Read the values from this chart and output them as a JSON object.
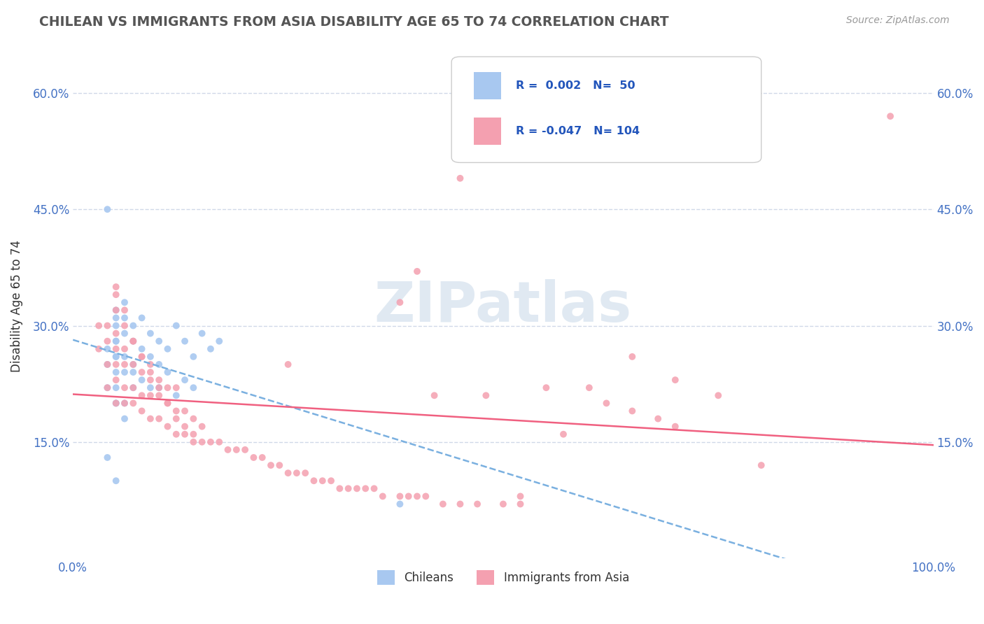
{
  "title": "CHILEAN VS IMMIGRANTS FROM ASIA DISABILITY AGE 65 TO 74 CORRELATION CHART",
  "source_text": "Source: ZipAtlas.com",
  "ylabel": "Disability Age 65 to 74",
  "xlim": [
    0.0,
    1.0
  ],
  "ylim": [
    0.0,
    0.65
  ],
  "xtick_labels": [
    "0.0%",
    "100.0%"
  ],
  "ytick_labels": [
    "15.0%",
    "30.0%",
    "45.0%",
    "60.0%"
  ],
  "ytick_values": [
    0.15,
    0.3,
    0.45,
    0.6
  ],
  "legend_r1": "R =  0.002",
  "legend_n1": "N=  50",
  "legend_r2": "R = -0.047",
  "legend_n2": "N= 104",
  "color_chilean": "#a8c8f0",
  "color_asia": "#f4a0b0",
  "trendline_chilean": "#7ab0e0",
  "trendline_asia": "#f06080",
  "background_color": "#ffffff",
  "grid_color": "#d0d8e8",
  "chilean_x": [
    0.04,
    0.04,
    0.04,
    0.05,
    0.05,
    0.05,
    0.05,
    0.05,
    0.05,
    0.05,
    0.05,
    0.06,
    0.06,
    0.06,
    0.06,
    0.06,
    0.07,
    0.07,
    0.07,
    0.08,
    0.08,
    0.09,
    0.09,
    0.1,
    0.1,
    0.11,
    0.12,
    0.13,
    0.14,
    0.15,
    0.16,
    0.17,
    0.05,
    0.06,
    0.07,
    0.08,
    0.09,
    0.1,
    0.11,
    0.12,
    0.13,
    0.14,
    0.05,
    0.06,
    0.07,
    0.38,
    0.04,
    0.05,
    0.05,
    0.04
  ],
  "chilean_y": [
    0.45,
    0.27,
    0.22,
    0.31,
    0.28,
    0.26,
    0.3,
    0.32,
    0.24,
    0.26,
    0.28,
    0.33,
    0.29,
    0.26,
    0.31,
    0.24,
    0.3,
    0.25,
    0.28,
    0.31,
    0.27,
    0.29,
    0.26,
    0.28,
    0.25,
    0.27,
    0.3,
    0.28,
    0.26,
    0.29,
    0.27,
    0.28,
    0.22,
    0.2,
    0.24,
    0.23,
    0.22,
    0.22,
    0.24,
    0.21,
    0.23,
    0.22,
    0.2,
    0.18,
    0.22,
    0.07,
    0.13,
    0.2,
    0.1,
    0.25
  ],
  "asia_x": [
    0.03,
    0.03,
    0.04,
    0.04,
    0.04,
    0.04,
    0.05,
    0.05,
    0.05,
    0.05,
    0.05,
    0.05,
    0.05,
    0.06,
    0.06,
    0.06,
    0.06,
    0.06,
    0.07,
    0.07,
    0.07,
    0.07,
    0.08,
    0.08,
    0.08,
    0.08,
    0.09,
    0.09,
    0.09,
    0.09,
    0.1,
    0.1,
    0.1,
    0.11,
    0.11,
    0.11,
    0.12,
    0.12,
    0.12,
    0.13,
    0.13,
    0.14,
    0.14,
    0.15,
    0.15,
    0.16,
    0.17,
    0.18,
    0.19,
    0.2,
    0.21,
    0.22,
    0.23,
    0.24,
    0.25,
    0.26,
    0.27,
    0.28,
    0.29,
    0.3,
    0.31,
    0.32,
    0.33,
    0.34,
    0.35,
    0.36,
    0.38,
    0.39,
    0.4,
    0.41,
    0.42,
    0.43,
    0.45,
    0.47,
    0.48,
    0.5,
    0.52,
    0.55,
    0.57,
    0.6,
    0.62,
    0.65,
    0.68,
    0.7,
    0.05,
    0.06,
    0.07,
    0.08,
    0.09,
    0.1,
    0.11,
    0.12,
    0.13,
    0.14,
    0.4,
    0.45,
    0.65,
    0.7,
    0.75,
    0.8,
    0.52,
    0.38,
    0.25,
    0.95
  ],
  "asia_y": [
    0.27,
    0.3,
    0.22,
    0.25,
    0.28,
    0.3,
    0.2,
    0.23,
    0.25,
    0.27,
    0.29,
    0.32,
    0.34,
    0.2,
    0.22,
    0.25,
    0.27,
    0.3,
    0.2,
    0.22,
    0.25,
    0.28,
    0.19,
    0.21,
    0.24,
    0.26,
    0.18,
    0.21,
    0.23,
    0.25,
    0.18,
    0.21,
    0.23,
    0.17,
    0.2,
    0.22,
    0.16,
    0.19,
    0.22,
    0.16,
    0.19,
    0.15,
    0.18,
    0.15,
    0.17,
    0.15,
    0.15,
    0.14,
    0.14,
    0.14,
    0.13,
    0.13,
    0.12,
    0.12,
    0.11,
    0.11,
    0.11,
    0.1,
    0.1,
    0.1,
    0.09,
    0.09,
    0.09,
    0.09,
    0.09,
    0.08,
    0.08,
    0.08,
    0.08,
    0.08,
    0.21,
    0.07,
    0.07,
    0.07,
    0.21,
    0.07,
    0.07,
    0.22,
    0.16,
    0.22,
    0.2,
    0.19,
    0.18,
    0.17,
    0.35,
    0.32,
    0.28,
    0.26,
    0.24,
    0.22,
    0.2,
    0.18,
    0.17,
    0.16,
    0.37,
    0.49,
    0.26,
    0.23,
    0.21,
    0.12,
    0.08,
    0.33,
    0.25,
    0.57
  ]
}
